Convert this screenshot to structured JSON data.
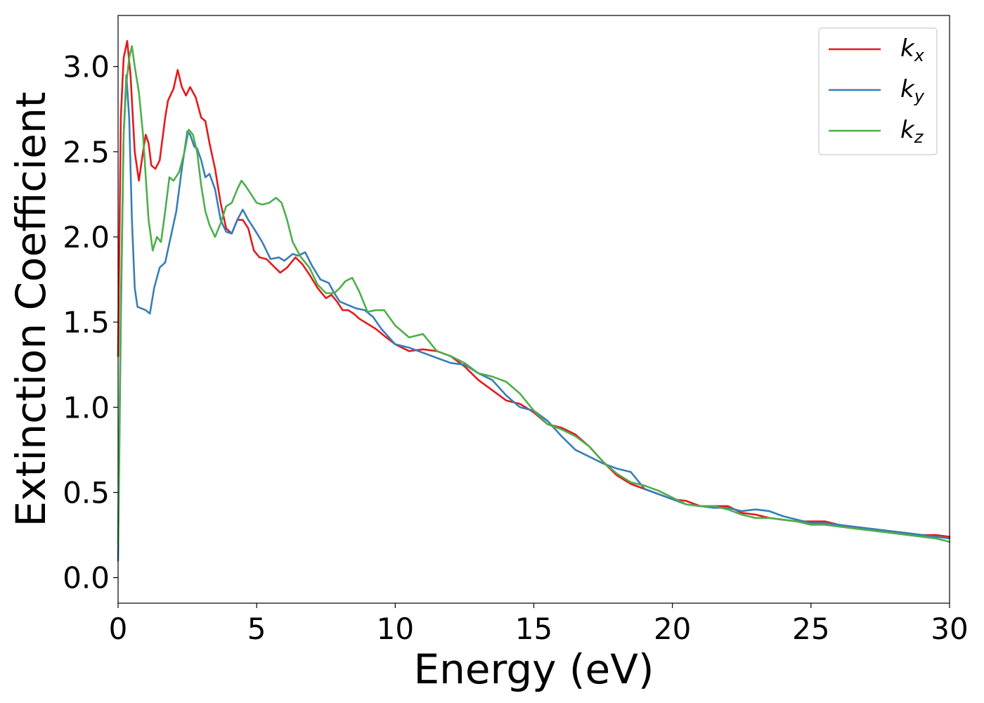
{
  "chart_data": {
    "type": "line",
    "title": "",
    "xlabel": "Energy (eV)",
    "ylabel": "Extinction Coefficient",
    "xlim": [
      0,
      30
    ],
    "ylim": [
      -0.15,
      3.3
    ],
    "xticks": [
      0,
      5,
      10,
      15,
      20,
      25,
      30
    ],
    "xtick_labels": [
      "0",
      "5",
      "10",
      "15",
      "20",
      "25",
      "30"
    ],
    "yticks": [
      0.0,
      0.5,
      1.0,
      1.5,
      2.0,
      2.5,
      3.0
    ],
    "ytick_labels": [
      "0.0",
      "0.5",
      "1.0",
      "1.5",
      "2.0",
      "2.5",
      "3.0"
    ],
    "grid": false,
    "legend_position": "top-right",
    "series": [
      {
        "name": "k_x",
        "legend_base": "k",
        "legend_sub": "x",
        "color": "#e41a1c",
        "points": [
          [
            0.0,
            1.3
          ],
          [
            0.1,
            2.7
          ],
          [
            0.2,
            3.05
          ],
          [
            0.33,
            3.15
          ],
          [
            0.45,
            2.95
          ],
          [
            0.6,
            2.5
          ],
          [
            0.75,
            2.33
          ],
          [
            0.9,
            2.5
          ],
          [
            1.0,
            2.6
          ],
          [
            1.1,
            2.55
          ],
          [
            1.2,
            2.42
          ],
          [
            1.35,
            2.4
          ],
          [
            1.5,
            2.45
          ],
          [
            1.7,
            2.7
          ],
          [
            1.8,
            2.8
          ],
          [
            2.0,
            2.87
          ],
          [
            2.15,
            2.98
          ],
          [
            2.3,
            2.88
          ],
          [
            2.45,
            2.83
          ],
          [
            2.6,
            2.88
          ],
          [
            2.8,
            2.82
          ],
          [
            3.0,
            2.7
          ],
          [
            3.15,
            2.68
          ],
          [
            3.3,
            2.55
          ],
          [
            3.5,
            2.4
          ],
          [
            3.7,
            2.2
          ],
          [
            3.9,
            2.05
          ],
          [
            4.1,
            2.02
          ],
          [
            4.3,
            2.1
          ],
          [
            4.5,
            2.1
          ],
          [
            4.7,
            2.05
          ],
          [
            4.9,
            1.92
          ],
          [
            5.1,
            1.88
          ],
          [
            5.35,
            1.87
          ],
          [
            5.6,
            1.83
          ],
          [
            5.85,
            1.79
          ],
          [
            6.1,
            1.82
          ],
          [
            6.4,
            1.88
          ],
          [
            6.65,
            1.84
          ],
          [
            6.9,
            1.78
          ],
          [
            7.2,
            1.7
          ],
          [
            7.5,
            1.64
          ],
          [
            7.7,
            1.66
          ],
          [
            7.9,
            1.62
          ],
          [
            8.1,
            1.57
          ],
          [
            8.3,
            1.57
          ],
          [
            8.5,
            1.55
          ],
          [
            8.7,
            1.52
          ],
          [
            9.0,
            1.49
          ],
          [
            9.3,
            1.46
          ],
          [
            9.6,
            1.42
          ],
          [
            10.0,
            1.37
          ],
          [
            10.5,
            1.33
          ],
          [
            11.0,
            1.34
          ],
          [
            11.5,
            1.33
          ],
          [
            12.0,
            1.3
          ],
          [
            12.5,
            1.24
          ],
          [
            13.0,
            1.16
          ],
          [
            13.5,
            1.1
          ],
          [
            14.0,
            1.04
          ],
          [
            14.5,
            1.02
          ],
          [
            15.0,
            0.97
          ],
          [
            15.5,
            0.9
          ],
          [
            16.0,
            0.88
          ],
          [
            16.5,
            0.84
          ],
          [
            17.0,
            0.77
          ],
          [
            17.5,
            0.68
          ],
          [
            18.0,
            0.6
          ],
          [
            18.5,
            0.55
          ],
          [
            19.0,
            0.52
          ],
          [
            19.5,
            0.49
          ],
          [
            20.0,
            0.46
          ],
          [
            20.5,
            0.45
          ],
          [
            21.0,
            0.42
          ],
          [
            21.5,
            0.42
          ],
          [
            22.0,
            0.42
          ],
          [
            22.5,
            0.38
          ],
          [
            23.0,
            0.37
          ],
          [
            23.5,
            0.35
          ],
          [
            24.0,
            0.34
          ],
          [
            24.5,
            0.33
          ],
          [
            25.0,
            0.33
          ],
          [
            25.5,
            0.33
          ],
          [
            26.0,
            0.31
          ],
          [
            26.5,
            0.3
          ],
          [
            27.0,
            0.29
          ],
          [
            27.5,
            0.28
          ],
          [
            28.0,
            0.27
          ],
          [
            28.5,
            0.26
          ],
          [
            29.0,
            0.25
          ],
          [
            29.5,
            0.25
          ],
          [
            30.0,
            0.24
          ]
        ]
      },
      {
        "name": "k_y",
        "legend_base": "k",
        "legend_sub": "y",
        "color": "#377eb8",
        "points": [
          [
            0.0,
            0.1
          ],
          [
            0.1,
            1.5
          ],
          [
            0.2,
            2.6
          ],
          [
            0.3,
            2.95
          ],
          [
            0.4,
            2.7
          ],
          [
            0.5,
            2.1
          ],
          [
            0.6,
            1.7
          ],
          [
            0.7,
            1.59
          ],
          [
            0.85,
            1.58
          ],
          [
            1.0,
            1.57
          ],
          [
            1.15,
            1.55
          ],
          [
            1.3,
            1.7
          ],
          [
            1.5,
            1.82
          ],
          [
            1.7,
            1.85
          ],
          [
            1.9,
            2.0
          ],
          [
            2.1,
            2.15
          ],
          [
            2.3,
            2.4
          ],
          [
            2.5,
            2.62
          ],
          [
            2.6,
            2.6
          ],
          [
            2.75,
            2.53
          ],
          [
            2.85,
            2.52
          ],
          [
            3.0,
            2.45
          ],
          [
            3.15,
            2.35
          ],
          [
            3.3,
            2.37
          ],
          [
            3.5,
            2.28
          ],
          [
            3.7,
            2.1
          ],
          [
            3.9,
            2.03
          ],
          [
            4.1,
            2.02
          ],
          [
            4.3,
            2.1
          ],
          [
            4.5,
            2.16
          ],
          [
            4.7,
            2.1
          ],
          [
            4.9,
            2.05
          ],
          [
            5.2,
            1.97
          ],
          [
            5.5,
            1.87
          ],
          [
            5.8,
            1.88
          ],
          [
            6.0,
            1.86
          ],
          [
            6.3,
            1.9
          ],
          [
            6.5,
            1.89
          ],
          [
            6.75,
            1.91
          ],
          [
            7.0,
            1.83
          ],
          [
            7.3,
            1.75
          ],
          [
            7.6,
            1.73
          ],
          [
            7.8,
            1.67
          ],
          [
            8.0,
            1.62
          ],
          [
            8.3,
            1.6
          ],
          [
            8.6,
            1.58
          ],
          [
            8.9,
            1.57
          ],
          [
            9.2,
            1.53
          ],
          [
            9.5,
            1.46
          ],
          [
            10.0,
            1.37
          ],
          [
            10.5,
            1.35
          ],
          [
            11.0,
            1.32
          ],
          [
            11.5,
            1.29
          ],
          [
            12.0,
            1.26
          ],
          [
            12.5,
            1.25
          ],
          [
            13.0,
            1.2
          ],
          [
            13.5,
            1.16
          ],
          [
            14.0,
            1.07
          ],
          [
            14.5,
            1.0
          ],
          [
            15.0,
            0.98
          ],
          [
            15.5,
            0.92
          ],
          [
            16.0,
            0.83
          ],
          [
            16.5,
            0.75
          ],
          [
            17.0,
            0.71
          ],
          [
            17.5,
            0.67
          ],
          [
            18.0,
            0.64
          ],
          [
            18.5,
            0.62
          ],
          [
            19.0,
            0.52
          ],
          [
            19.5,
            0.49
          ],
          [
            20.0,
            0.46
          ],
          [
            20.5,
            0.43
          ],
          [
            21.0,
            0.42
          ],
          [
            21.5,
            0.41
          ],
          [
            22.0,
            0.41
          ],
          [
            22.5,
            0.39
          ],
          [
            23.0,
            0.4
          ],
          [
            23.5,
            0.39
          ],
          [
            24.0,
            0.36
          ],
          [
            24.5,
            0.34
          ],
          [
            25.0,
            0.32
          ],
          [
            25.5,
            0.32
          ],
          [
            26.0,
            0.31
          ],
          [
            26.5,
            0.3
          ],
          [
            27.0,
            0.29
          ],
          [
            27.5,
            0.28
          ],
          [
            28.0,
            0.27
          ],
          [
            28.5,
            0.26
          ],
          [
            29.0,
            0.25
          ],
          [
            29.5,
            0.24
          ],
          [
            30.0,
            0.23
          ]
        ]
      },
      {
        "name": "k_z",
        "legend_base": "k",
        "legend_sub": "z",
        "color": "#4daf4a",
        "points": [
          [
            0.0,
            0.2
          ],
          [
            0.1,
            1.6
          ],
          [
            0.2,
            2.6
          ],
          [
            0.3,
            2.9
          ],
          [
            0.4,
            3.05
          ],
          [
            0.5,
            3.12
          ],
          [
            0.6,
            3.0
          ],
          [
            0.75,
            2.85
          ],
          [
            0.9,
            2.6
          ],
          [
            1.0,
            2.35
          ],
          [
            1.1,
            2.1
          ],
          [
            1.25,
            1.92
          ],
          [
            1.4,
            2.0
          ],
          [
            1.55,
            1.97
          ],
          [
            1.7,
            2.15
          ],
          [
            1.85,
            2.35
          ],
          [
            2.0,
            2.33
          ],
          [
            2.2,
            2.38
          ],
          [
            2.4,
            2.5
          ],
          [
            2.55,
            2.63
          ],
          [
            2.7,
            2.6
          ],
          [
            2.85,
            2.5
          ],
          [
            3.0,
            2.3
          ],
          [
            3.15,
            2.15
          ],
          [
            3.3,
            2.07
          ],
          [
            3.5,
            2.0
          ],
          [
            3.7,
            2.08
          ],
          [
            3.9,
            2.18
          ],
          [
            4.1,
            2.2
          ],
          [
            4.3,
            2.28
          ],
          [
            4.45,
            2.33
          ],
          [
            4.6,
            2.3
          ],
          [
            4.8,
            2.25
          ],
          [
            5.0,
            2.2
          ],
          [
            5.2,
            2.19
          ],
          [
            5.45,
            2.2
          ],
          [
            5.7,
            2.23
          ],
          [
            5.9,
            2.2
          ],
          [
            6.1,
            2.1
          ],
          [
            6.3,
            1.97
          ],
          [
            6.6,
            1.88
          ],
          [
            6.9,
            1.82
          ],
          [
            7.2,
            1.72
          ],
          [
            7.5,
            1.67
          ],
          [
            7.8,
            1.67
          ],
          [
            8.0,
            1.7
          ],
          [
            8.2,
            1.74
          ],
          [
            8.45,
            1.76
          ],
          [
            8.7,
            1.68
          ],
          [
            9.0,
            1.56
          ],
          [
            9.3,
            1.57
          ],
          [
            9.6,
            1.57
          ],
          [
            10.0,
            1.48
          ],
          [
            10.5,
            1.41
          ],
          [
            11.0,
            1.43
          ],
          [
            11.5,
            1.33
          ],
          [
            12.0,
            1.3
          ],
          [
            12.5,
            1.26
          ],
          [
            13.0,
            1.2
          ],
          [
            13.5,
            1.18
          ],
          [
            14.0,
            1.15
          ],
          [
            14.5,
            1.08
          ],
          [
            15.0,
            0.98
          ],
          [
            15.5,
            0.9
          ],
          [
            16.0,
            0.87
          ],
          [
            16.5,
            0.83
          ],
          [
            17.0,
            0.77
          ],
          [
            17.5,
            0.68
          ],
          [
            18.0,
            0.61
          ],
          [
            18.5,
            0.56
          ],
          [
            19.0,
            0.54
          ],
          [
            19.5,
            0.51
          ],
          [
            20.0,
            0.47
          ],
          [
            20.5,
            0.43
          ],
          [
            21.0,
            0.42
          ],
          [
            21.5,
            0.42
          ],
          [
            22.0,
            0.4
          ],
          [
            22.5,
            0.37
          ],
          [
            23.0,
            0.35
          ],
          [
            23.5,
            0.35
          ],
          [
            24.0,
            0.34
          ],
          [
            24.5,
            0.33
          ],
          [
            25.0,
            0.31
          ],
          [
            25.5,
            0.31
          ],
          [
            26.0,
            0.3
          ],
          [
            26.5,
            0.29
          ],
          [
            27.0,
            0.28
          ],
          [
            27.5,
            0.27
          ],
          [
            28.0,
            0.26
          ],
          [
            28.5,
            0.25
          ],
          [
            29.0,
            0.24
          ],
          [
            29.5,
            0.23
          ],
          [
            30.0,
            0.21
          ]
        ]
      }
    ]
  }
}
